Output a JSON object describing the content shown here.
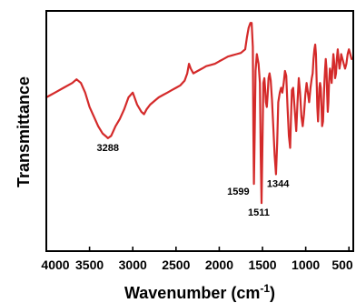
{
  "chart_data": {
    "type": "line",
    "xlabel": "Wavenumber (cm",
    "xlabel_sup": "-1",
    "xlabel_close": ")",
    "ylabel": "Transmittance",
    "xlim": [
      4000,
      450
    ],
    "ylim": [
      0,
      100
    ],
    "x_reversed": true,
    "x_ticks": [
      4000,
      3500,
      3000,
      2500,
      2000,
      1500,
      1000,
      500
    ],
    "y_tick_labels_shown": false,
    "grid": false,
    "series": [
      {
        "color": "#d42a2a",
        "points": [
          [
            4000,
            64
          ],
          [
            3950,
            65
          ],
          [
            3900,
            66
          ],
          [
            3800,
            68
          ],
          [
            3700,
            70
          ],
          [
            3650,
            71.5
          ],
          [
            3600,
            70
          ],
          [
            3550,
            66
          ],
          [
            3500,
            60
          ],
          [
            3450,
            56
          ],
          [
            3400,
            52
          ],
          [
            3350,
            49
          ],
          [
            3300,
            47.5
          ],
          [
            3288,
            47
          ],
          [
            3250,
            48
          ],
          [
            3200,
            52
          ],
          [
            3150,
            55
          ],
          [
            3100,
            59
          ],
          [
            3050,
            64
          ],
          [
            3000,
            66
          ],
          [
            2980,
            64
          ],
          [
            2950,
            61
          ],
          [
            2900,
            58
          ],
          [
            2870,
            57
          ],
          [
            2840,
            59
          ],
          [
            2800,
            61
          ],
          [
            2750,
            62.5
          ],
          [
            2700,
            64
          ],
          [
            2650,
            65
          ],
          [
            2600,
            66
          ],
          [
            2550,
            67
          ],
          [
            2500,
            68
          ],
          [
            2450,
            69
          ],
          [
            2400,
            71
          ],
          [
            2370,
            74
          ],
          [
            2350,
            78
          ],
          [
            2330,
            76
          ],
          [
            2300,
            74
          ],
          [
            2250,
            75
          ],
          [
            2200,
            76
          ],
          [
            2150,
            77
          ],
          [
            2100,
            77.5
          ],
          [
            2050,
            78
          ],
          [
            2000,
            79
          ],
          [
            1950,
            80
          ],
          [
            1900,
            81
          ],
          [
            1850,
            81.5
          ],
          [
            1800,
            82
          ],
          [
            1750,
            82.5
          ],
          [
            1700,
            84
          ],
          [
            1680,
            89
          ],
          [
            1660,
            93
          ],
          [
            1640,
            95
          ],
          [
            1625,
            95
          ],
          [
            1612,
            85
          ],
          [
            1605,
            50
          ],
          [
            1599,
            28
          ],
          [
            1590,
            50
          ],
          [
            1580,
            75
          ],
          [
            1565,
            82
          ],
          [
            1545,
            78
          ],
          [
            1530,
            70
          ],
          [
            1520,
            40
          ],
          [
            1511,
            20
          ],
          [
            1500,
            45
          ],
          [
            1490,
            70
          ],
          [
            1478,
            72
          ],
          [
            1470,
            68
          ],
          [
            1460,
            62
          ],
          [
            1450,
            60
          ],
          [
            1440,
            65
          ],
          [
            1430,
            72
          ],
          [
            1418,
            74
          ],
          [
            1405,
            71
          ],
          [
            1390,
            63
          ],
          [
            1375,
            52
          ],
          [
            1360,
            40
          ],
          [
            1344,
            32
          ],
          [
            1330,
            45
          ],
          [
            1318,
            62
          ],
          [
            1300,
            66
          ],
          [
            1285,
            68
          ],
          [
            1270,
            66
          ],
          [
            1255,
            70
          ],
          [
            1240,
            75
          ],
          [
            1225,
            73
          ],
          [
            1210,
            60
          ],
          [
            1195,
            48
          ],
          [
            1180,
            43
          ],
          [
            1170,
            55
          ],
          [
            1160,
            67
          ],
          [
            1145,
            68
          ],
          [
            1130,
            60
          ],
          [
            1110,
            50
          ],
          [
            1095,
            62
          ],
          [
            1080,
            72
          ],
          [
            1065,
            66
          ],
          [
            1050,
            56
          ],
          [
            1035,
            52
          ],
          [
            1020,
            57
          ],
          [
            1005,
            65
          ],
          [
            990,
            70
          ],
          [
            975,
            66
          ],
          [
            960,
            62
          ],
          [
            945,
            68
          ],
          [
            930,
            72
          ],
          [
            920,
            74
          ],
          [
            910,
            80
          ],
          [
            900,
            84
          ],
          [
            890,
            86
          ],
          [
            882,
            82
          ],
          [
            874,
            72
          ],
          [
            866,
            60
          ],
          [
            858,
            54
          ],
          [
            850,
            60
          ],
          [
            842,
            68
          ],
          [
            834,
            70
          ],
          [
            826,
            68
          ],
          [
            818,
            60
          ],
          [
            810,
            52
          ],
          [
            800,
            54
          ],
          [
            792,
            62
          ],
          [
            784,
            70
          ],
          [
            776,
            76
          ],
          [
            768,
            80
          ],
          [
            760,
            76
          ],
          [
            752,
            66
          ],
          [
            745,
            58
          ],
          [
            738,
            62
          ],
          [
            730,
            70
          ],
          [
            720,
            76
          ],
          [
            710,
            74
          ],
          [
            700,
            70
          ],
          [
            690,
            76
          ],
          [
            680,
            82
          ],
          [
            670,
            78
          ],
          [
            660,
            72
          ],
          [
            650,
            74
          ],
          [
            640,
            80
          ],
          [
            630,
            84
          ],
          [
            620,
            80
          ],
          [
            610,
            76
          ],
          [
            600,
            78
          ],
          [
            590,
            82
          ],
          [
            575,
            80
          ],
          [
            560,
            78
          ],
          [
            545,
            76
          ],
          [
            530,
            78
          ],
          [
            515,
            82
          ],
          [
            500,
            84
          ],
          [
            485,
            82
          ],
          [
            470,
            80
          ],
          [
            455,
            80
          ]
        ]
      }
    ],
    "annotations": [
      {
        "text": "3288",
        "x": 3288,
        "y": 47
      },
      {
        "text": "1599",
        "x": 1599,
        "y": 28
      },
      {
        "text": "1511",
        "x": 1511,
        "y": 20
      },
      {
        "text": "1344",
        "x": 1344,
        "y": 32
      }
    ]
  }
}
